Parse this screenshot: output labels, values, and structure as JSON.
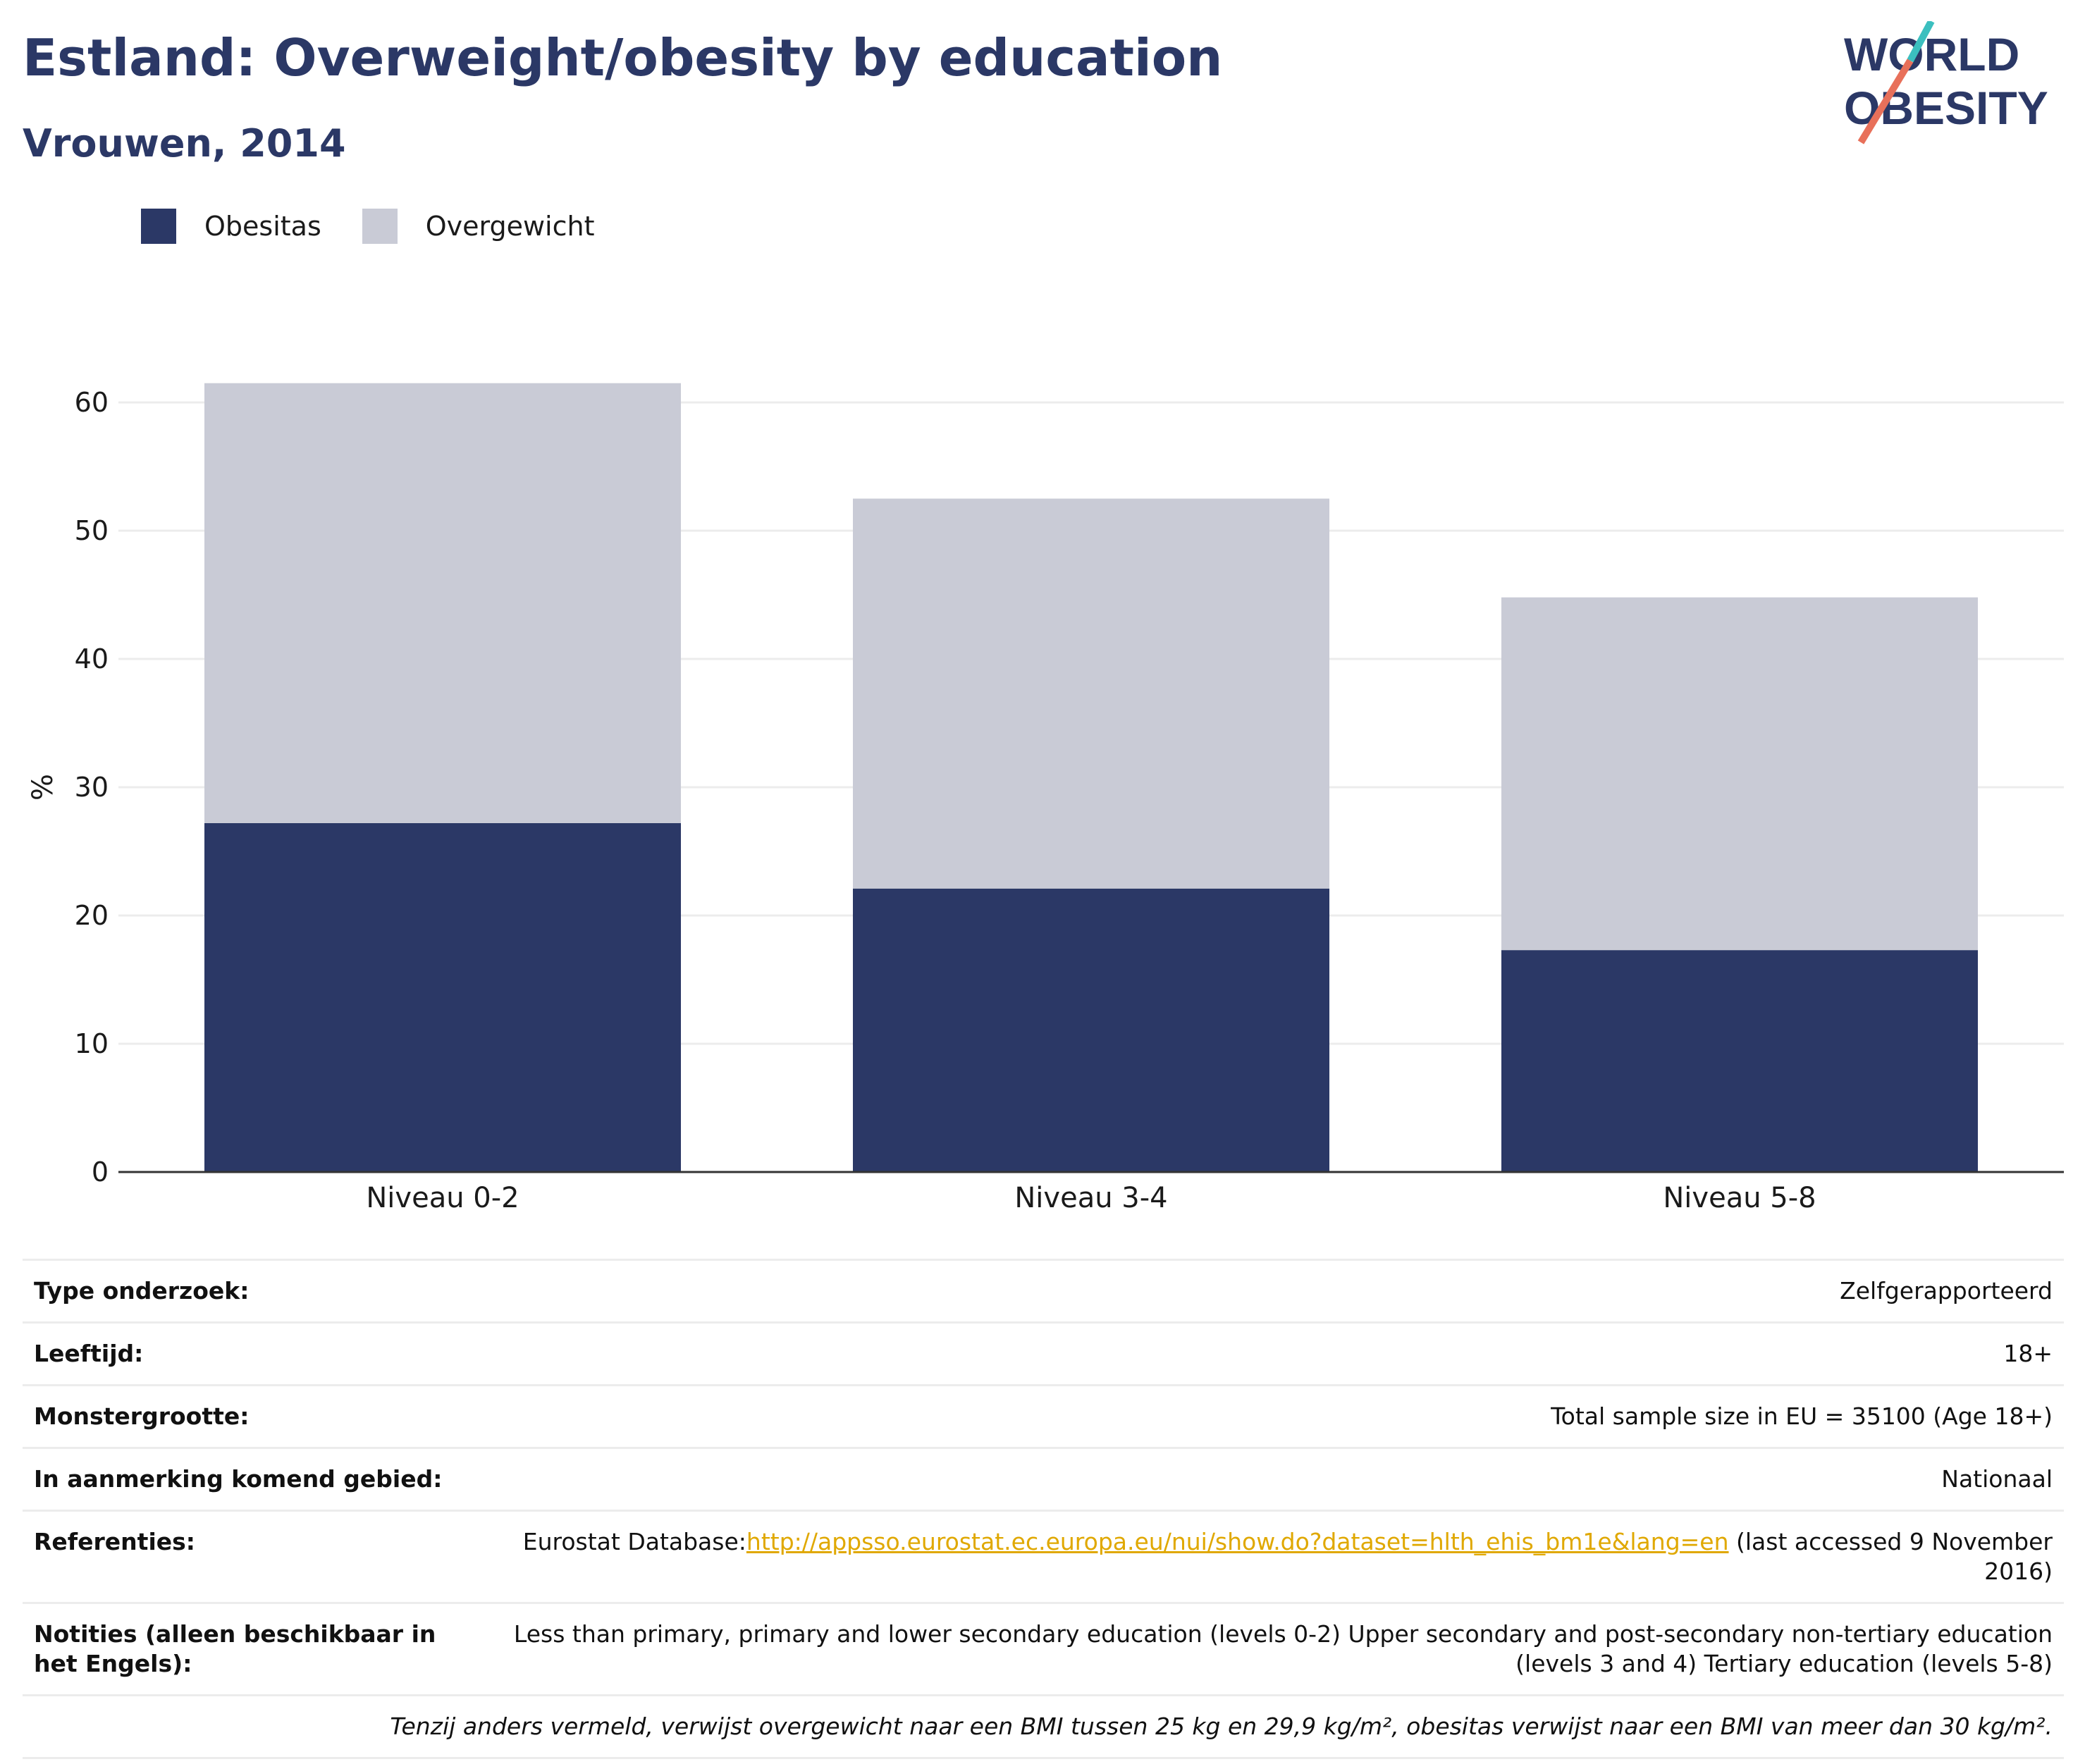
{
  "header": {
    "title": "Estland: Overweight/obesity by education",
    "subtitle": "Vrouwen, 2014",
    "logo_line1": "WORLD",
    "logo_line2": "OBESITY"
  },
  "colors": {
    "obesity": "#2b3866",
    "overweight": "#c9cbd6",
    "title": "#2b3866",
    "link": "#e0a800",
    "logo_teal": "#3bbfbf",
    "logo_coral": "#e8705a"
  },
  "chart_data": {
    "type": "bar",
    "stacked": true,
    "categories": [
      "Niveau 0-2",
      "Niveau 3-4",
      "Niveau 5-8"
    ],
    "series": [
      {
        "name": "Obesitas",
        "values": [
          27.2,
          22.1,
          17.3
        ]
      },
      {
        "name": "Overgewicht",
        "values": [
          34.3,
          30.4,
          27.5
        ]
      }
    ],
    "ylabel": "%",
    "ylim": [
      0,
      65
    ],
    "yticks": [
      0,
      10,
      20,
      30,
      40,
      50,
      60
    ],
    "grid": true,
    "legend_position": "top-left"
  },
  "info": {
    "rows": [
      {
        "label": "Type onderzoek:",
        "value": "Zelfgerapporteerd"
      },
      {
        "label": "Leeftijd:",
        "value": "18+"
      },
      {
        "label": "Monstergrootte:",
        "value": "Total sample size in EU = 35100 (Age 18+)"
      },
      {
        "label": "In aanmerking komend gebied:",
        "value": "Nationaal"
      }
    ],
    "references": {
      "label": "Referenties:",
      "prefix": "Eurostat Database:",
      "link": "http://appsso.eurostat.ec.europa.eu/nui/show.do?dataset=hlth_ehis_bm1e&lang=en",
      "suffix": " (last accessed 9 November 2016)"
    },
    "notes": {
      "label": "Notities (alleen beschikbaar in het Engels):",
      "value": "Less than primary, primary and lower secondary education (levels 0-2) Upper secondary and post-secondary non-tertiary education (levels 3 and 4) Tertiary education (levels 5-8)"
    },
    "footnote": "Tenzij anders vermeld, verwijst overgewicht naar een BMI tussen 25 kg en 29,9 kg/m², obesitas verwijst naar een BMI van meer dan 30 kg/m²."
  }
}
